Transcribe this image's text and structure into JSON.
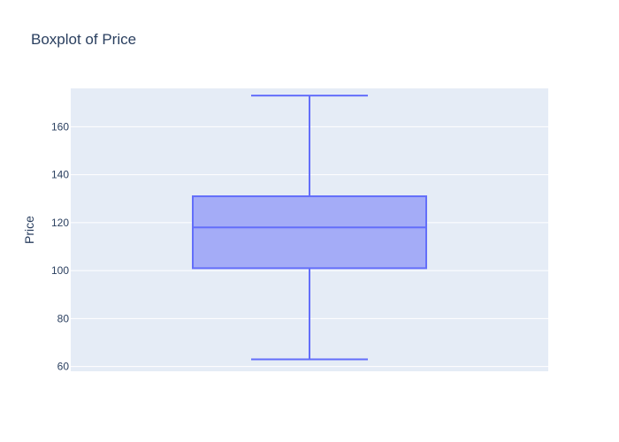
{
  "chart_data": {
    "type": "box",
    "title": "Boxplot of Price",
    "xlabel": "",
    "ylabel": "Price",
    "ylim": [
      58,
      176
    ],
    "yticks": [
      60,
      80,
      100,
      120,
      140,
      160
    ],
    "grid": true,
    "box": {
      "lower_whisker": 63,
      "q1": 101,
      "median": 118,
      "q3": 131,
      "upper_whisker": 173
    },
    "colors": {
      "plot_background": "#e5ecf6",
      "grid": "#ffffff",
      "box_fill": "#a4acf7",
      "box_line": "#636efa",
      "text": "#2a3f5f"
    }
  }
}
